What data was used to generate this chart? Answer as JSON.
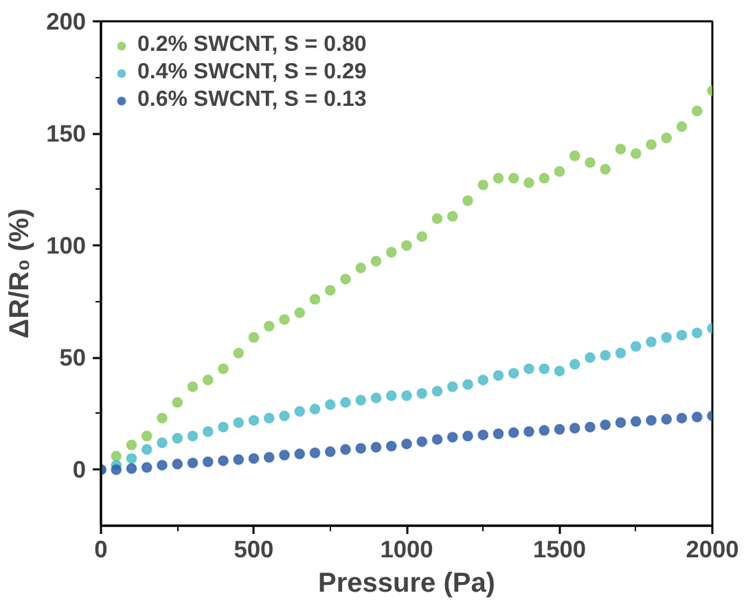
{
  "chart_data": {
    "type": "scatter",
    "xlabel": "Pressure (Pa)",
    "ylabel": "ΔR/R₀ (%)",
    "xlim": [
      0,
      2000
    ],
    "ylim": [
      -25,
      200
    ],
    "xticks": [
      0,
      500,
      1000,
      1500,
      2000
    ],
    "yticks": [
      0,
      50,
      100,
      150,
      200
    ],
    "grid": false,
    "legend": "top left",
    "marker": "circle",
    "series": [
      {
        "name": "0.2% SWCNT, S = 0.80",
        "color": "#8ccc5c",
        "x": [
          0,
          50,
          100,
          150,
          200,
          250,
          300,
          350,
          400,
          450,
          500,
          550,
          600,
          650,
          700,
          750,
          800,
          850,
          900,
          950,
          1000,
          1050,
          1100,
          1150,
          1200,
          1250,
          1300,
          1350,
          1400,
          1450,
          1500,
          1550,
          1600,
          1650,
          1700,
          1750,
          1800,
          1850,
          1900,
          1950,
          2000
        ],
        "values": [
          0,
          6,
          11,
          15,
          23,
          30,
          37,
          40,
          45,
          52,
          59,
          64,
          67,
          70,
          76,
          80,
          85,
          90,
          93,
          97,
          100,
          104,
          112,
          113,
          120,
          127,
          130,
          130,
          128,
          130,
          133,
          140,
          137,
          134,
          143,
          141,
          145,
          148,
          153,
          160,
          169
        ]
      },
      {
        "name": "0.4% SWCNT, S = 0.29",
        "color": "#4cbccc",
        "x": [
          0,
          50,
          100,
          150,
          200,
          250,
          300,
          350,
          400,
          450,
          500,
          550,
          600,
          650,
          700,
          750,
          800,
          850,
          900,
          950,
          1000,
          1050,
          1100,
          1150,
          1200,
          1250,
          1300,
          1350,
          1400,
          1450,
          1500,
          1550,
          1600,
          1650,
          1700,
          1750,
          1800,
          1850,
          1900,
          1950,
          2000
        ],
        "values": [
          0,
          2,
          5,
          9,
          12,
          14,
          15,
          17,
          19,
          21,
          22,
          23,
          24,
          26,
          27,
          29,
          30,
          31,
          32,
          33,
          33,
          34,
          35,
          37,
          38,
          40,
          42,
          43,
          45,
          45,
          44,
          47,
          50,
          51,
          52,
          55,
          57,
          59,
          60,
          61,
          63
        ]
      },
      {
        "name": "0.6% SWCNT, S = 0.13",
        "color": "#2f5ea8",
        "x": [
          0,
          50,
          100,
          150,
          200,
          250,
          300,
          350,
          400,
          450,
          500,
          550,
          600,
          650,
          700,
          750,
          800,
          850,
          900,
          950,
          1000,
          1050,
          1100,
          1150,
          1200,
          1250,
          1300,
          1350,
          1400,
          1450,
          1500,
          1550,
          1600,
          1650,
          1700,
          1750,
          1800,
          1850,
          1900,
          1950,
          2000
        ],
        "values": [
          0,
          0,
          0.5,
          1,
          2,
          2.5,
          3,
          3.5,
          4,
          4.5,
          5,
          5.5,
          6.5,
          7,
          7.5,
          8,
          9,
          9.5,
          10,
          10.5,
          11.5,
          12.5,
          13.5,
          14.5,
          15,
          15.5,
          16,
          16.5,
          17,
          17.5,
          18,
          18.5,
          19,
          20,
          21,
          21.5,
          22,
          22.5,
          23,
          23.5,
          24
        ]
      }
    ]
  }
}
